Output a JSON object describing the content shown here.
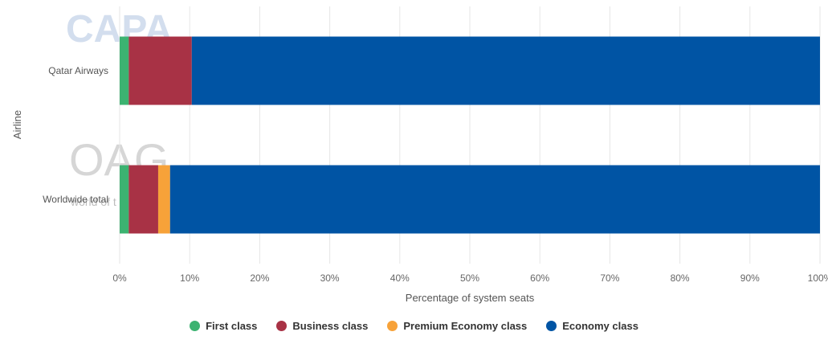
{
  "chart_data": {
    "type": "bar",
    "orientation": "horizontal",
    "stacked": true,
    "ylabel": "Airline",
    "xlabel": "Percentage of system seats",
    "categories": [
      "Qatar Airways",
      "Worldwide total"
    ],
    "series": [
      {
        "name": "First class",
        "color": "#3cb371",
        "values": [
          1.3,
          1.3
        ]
      },
      {
        "name": "Business class",
        "color": "#a83245",
        "values": [
          9.0,
          4.2
        ]
      },
      {
        "name": "Premium Economy class",
        "color": "#f7a239",
        "values": [
          0.0,
          1.7
        ]
      },
      {
        "name": "Economy class",
        "color": "#0054a4",
        "values": [
          89.7,
          92.8
        ]
      }
    ],
    "xlim": [
      0,
      100
    ],
    "x_ticks": [
      "0%",
      "10%",
      "20%",
      "30%",
      "40%",
      "50%",
      "60%",
      "70%",
      "80%",
      "90%",
      "100%"
    ],
    "grid": true,
    "legend_position": "bottom"
  },
  "watermarks": {
    "capa": "CAPA",
    "oag": "OAG",
    "oag_tagline": "world of t"
  }
}
